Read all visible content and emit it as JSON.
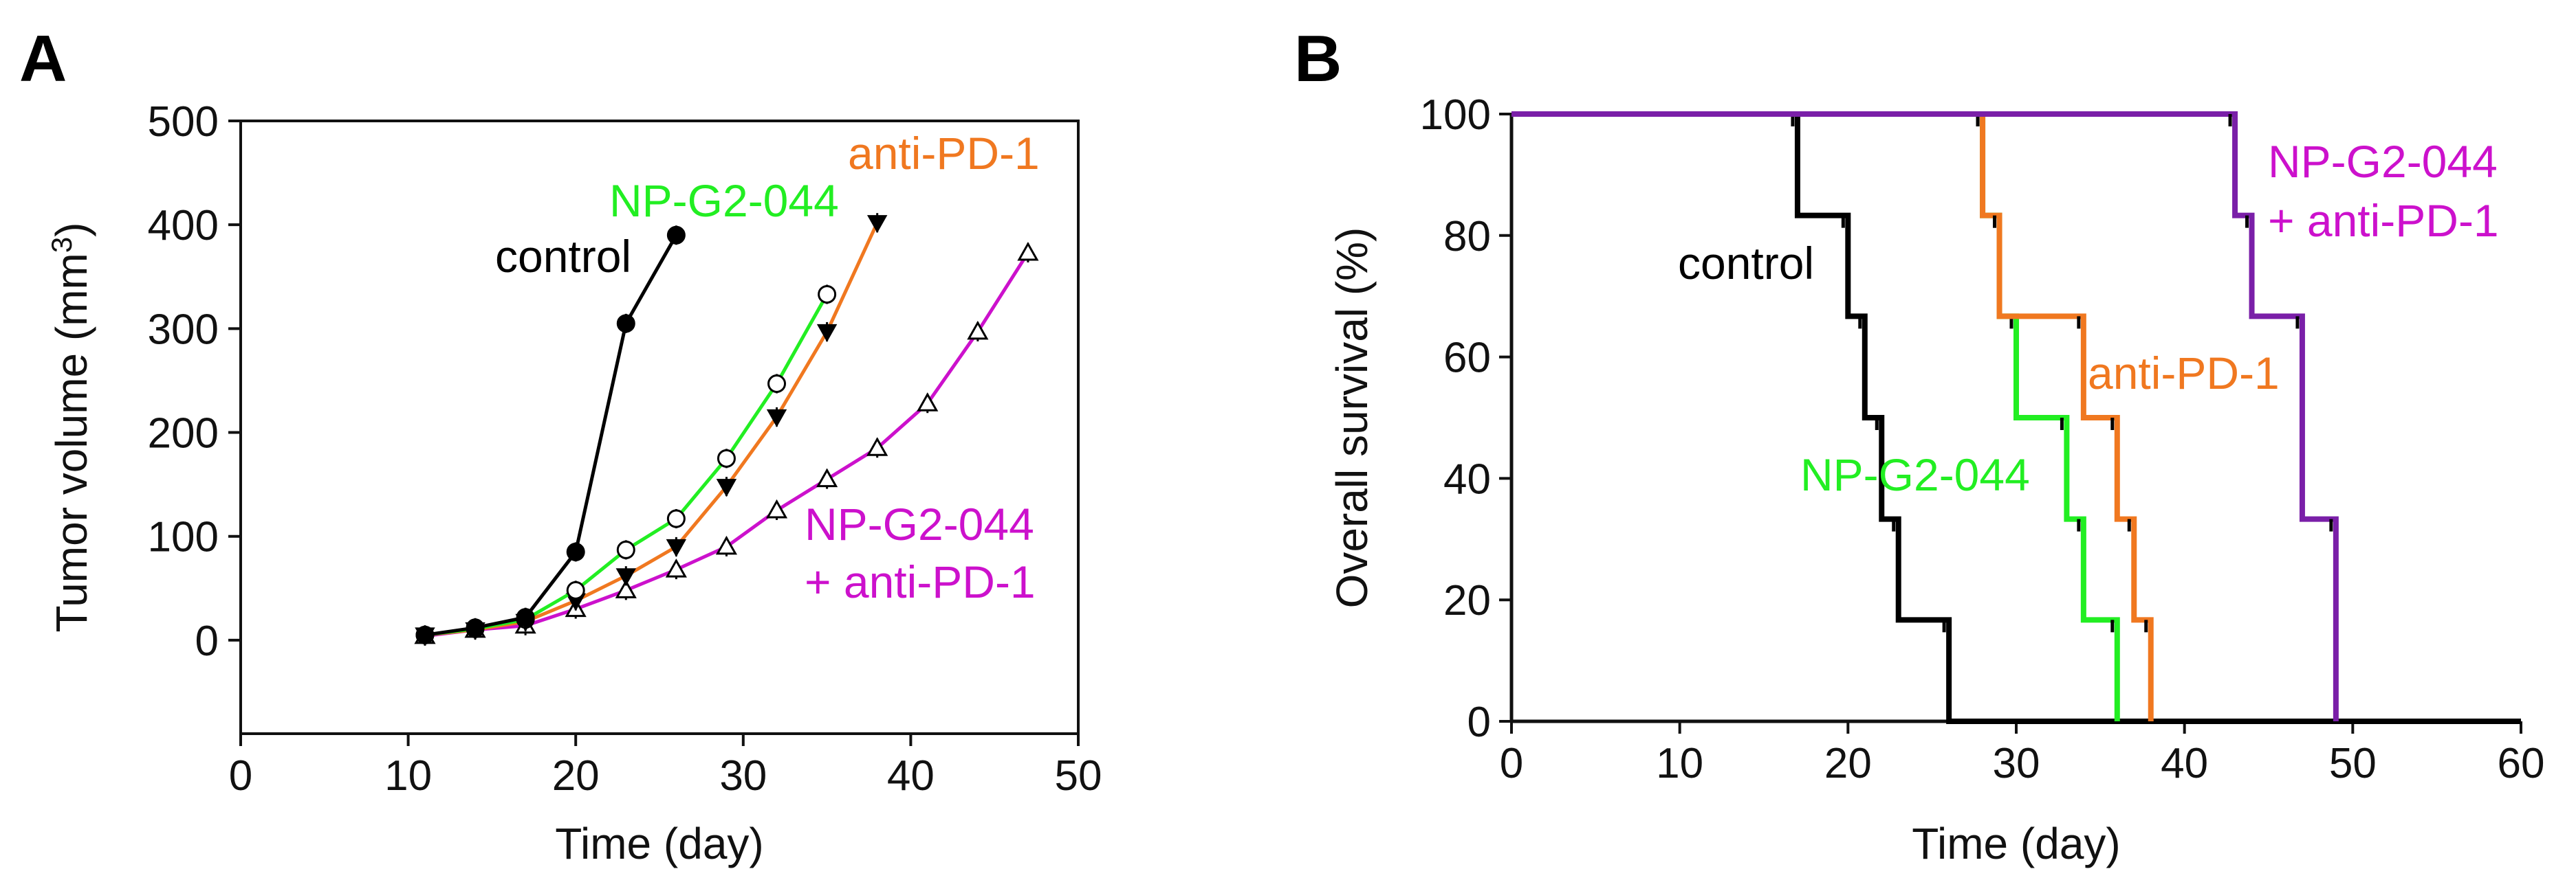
{
  "chart_data": [
    {
      "panel": "A",
      "type": "line",
      "xlabel": "Time (day)",
      "ylabel": "Tumor volume (mm",
      "ylabel_sup": "3",
      "ylabel_end": ")",
      "xlim": [
        0,
        50
      ],
      "ylim": [
        -90,
        500
      ],
      "xticks": [
        0,
        10,
        20,
        30,
        40,
        50
      ],
      "yticks": [
        0,
        100,
        200,
        300,
        400,
        500
      ],
      "grid": false,
      "series": [
        {
          "name": "control",
          "color": "#000000",
          "marker": "filled-circle",
          "x": [
            11,
            14,
            17,
            20,
            23,
            26
          ],
          "y": [
            5,
            12,
            22,
            85,
            305,
            390
          ]
        },
        {
          "name": "NP-G2-044",
          "color": "#22ee22",
          "marker": "open-circle",
          "x": [
            11,
            14,
            17,
            20,
            23,
            26,
            29,
            32,
            35
          ],
          "y": [
            5,
            11,
            20,
            48,
            87,
            117,
            175,
            247,
            333
          ]
        },
        {
          "name": "anti-PD-1",
          "color": "#f07820",
          "marker": "filled-triangle-down",
          "x": [
            11,
            14,
            17,
            20,
            23,
            26,
            29,
            32,
            35,
            38
          ],
          "y": [
            5,
            10,
            18,
            38,
            62,
            90,
            148,
            215,
            297,
            402
          ]
        },
        {
          "name": "NP-G2-044\n+ anti-PD-1",
          "name_lines": [
            "NP-G2-044",
            "+ anti-PD-1"
          ],
          "color": "#cc11cc",
          "marker": "open-triangle-up",
          "x": [
            11,
            14,
            17,
            20,
            23,
            26,
            29,
            32,
            35,
            38,
            41,
            44,
            47
          ],
          "y": [
            4,
            10,
            14,
            30,
            48,
            68,
            90,
            125,
            155,
            185,
            228,
            297,
            373
          ]
        }
      ]
    },
    {
      "panel": "B",
      "type": "line",
      "step": true,
      "xlabel": "Time (day)",
      "ylabel": "Overall survival (%)",
      "xlim": [
        0,
        60
      ],
      "ylim": [
        0,
        100
      ],
      "xticks": [
        0,
        10,
        20,
        30,
        40,
        50,
        60
      ],
      "yticks": [
        0,
        20,
        40,
        60,
        80,
        100
      ],
      "grid": false,
      "series": [
        {
          "name": "control",
          "color": "#000000",
          "x": [
            0,
            17,
            20,
            21,
            22,
            23,
            26,
            60
          ],
          "y": [
            100,
            83.3,
            66.7,
            50,
            33.3,
            16.7,
            0,
            0
          ]
        },
        {
          "name": "NP-G2-044",
          "color": "#22ee22",
          "x": [
            0,
            28,
            29,
            30,
            33,
            34,
            36
          ],
          "y": [
            100,
            83.3,
            66.7,
            50,
            33.3,
            16.7,
            0
          ]
        },
        {
          "name": "anti-PD-1",
          "color": "#f07820",
          "x": [
            0,
            28,
            29,
            34,
            36,
            37,
            38
          ],
          "y": [
            100,
            83.3,
            66.7,
            50,
            33.3,
            16.7,
            0
          ]
        },
        {
          "name": "NP-G2-044\n+ anti-PD-1",
          "name_lines": [
            "NP-G2-044",
            "+ anti-PD-1"
          ],
          "color": "#7a1fa8",
          "x": [
            0,
            43,
            44,
            47,
            49
          ],
          "y": [
            100,
            83.3,
            66.7,
            33.3,
            0
          ]
        }
      ]
    }
  ]
}
